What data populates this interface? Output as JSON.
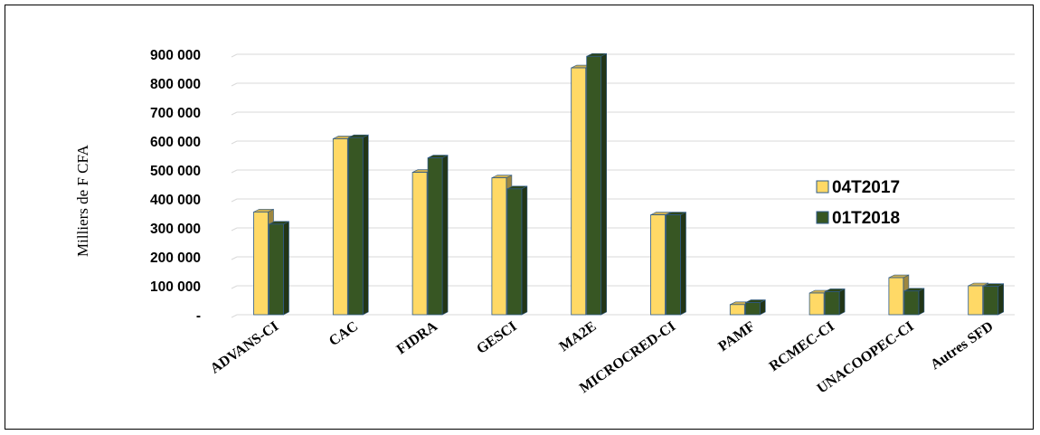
{
  "chart_data": {
    "type": "bar",
    "title": "",
    "xlabel": "",
    "ylabel": "Milliers de F CFA",
    "ylim": [
      0,
      900000
    ],
    "yticks": [
      0,
      100000,
      200000,
      300000,
      400000,
      500000,
      600000,
      700000,
      800000,
      900000
    ],
    "ytick_labels": [
      "-",
      "100 000",
      "200 000",
      "300 000",
      "400 000",
      "500 000",
      "600 000",
      "700 000",
      "800 000",
      "900 000"
    ],
    "grid": true,
    "legend_position": "right",
    "categories": [
      "ADVANS-CI",
      "CAC",
      "FIDRA",
      "GESCI",
      "MA2E",
      "MICROCRED-CI",
      "PAMF",
      "RCMEC-CI",
      "UNACOOPEC-CI",
      "Autres SFD"
    ],
    "series": [
      {
        "name": "04T2017",
        "color": "#FFD966",
        "values": [
          355000,
          608000,
          492000,
          473000,
          853000,
          345000,
          35000,
          75000,
          128000,
          100000
        ]
      },
      {
        "name": "01T2018",
        "color": "#375623",
        "values": [
          313000,
          612000,
          542000,
          435000,
          893000,
          345000,
          42000,
          80000,
          82000,
          98000
        ]
      }
    ]
  }
}
